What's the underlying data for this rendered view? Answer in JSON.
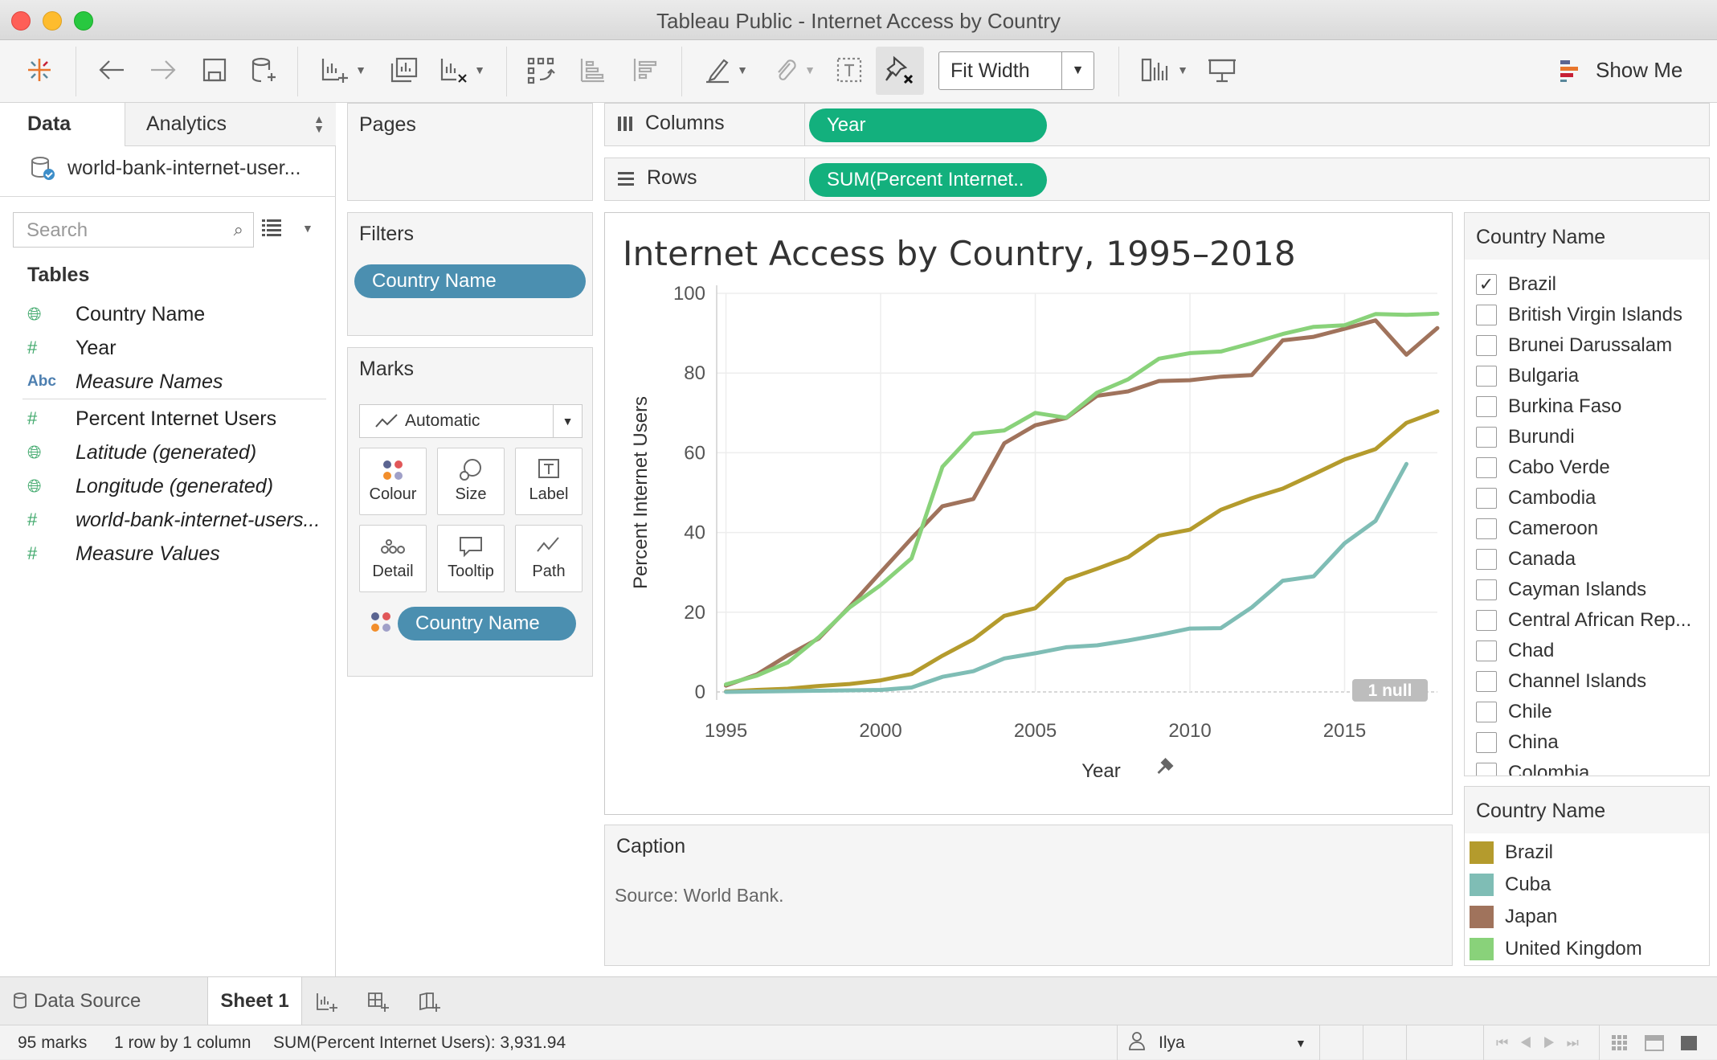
{
  "window": {
    "title": "Tableau Public - Internet Access by Country"
  },
  "toolbar": {
    "fit_label": "Fit Width",
    "show_me_label": "Show Me"
  },
  "data_pane": {
    "tab_data": "Data",
    "tab_analytics": "Analytics",
    "datasource": "world-bank-internet-user...",
    "search_placeholder": "Search",
    "tables_heading": "Tables",
    "fields": [
      {
        "name": "Country Name",
        "icon": "globe-icon",
        "italic": false
      },
      {
        "name": "Year",
        "icon": "hash-icon",
        "italic": false
      },
      {
        "name": "Measure Names",
        "icon": "abc-icon",
        "italic": true
      },
      {
        "name": "Percent Internet Users",
        "icon": "hash-icon",
        "italic": false
      },
      {
        "name": "Latitude (generated)",
        "icon": "globe-icon",
        "italic": true
      },
      {
        "name": "Longitude (generated)",
        "icon": "globe-icon",
        "italic": true
      },
      {
        "name": "world-bank-internet-users...",
        "icon": "hash-icon",
        "italic": true
      },
      {
        "name": "Measure Values",
        "icon": "hash-icon",
        "italic": true
      }
    ]
  },
  "shelves": {
    "pages_label": "Pages",
    "filters_label": "Filters",
    "filter_pill": "Country Name",
    "marks_label": "Marks",
    "mark_type": "Automatic",
    "mark_buttons": [
      "Colour",
      "Size",
      "Label",
      "Detail",
      "Tooltip",
      "Path"
    ],
    "color_pill": "Country Name",
    "columns_label": "Columns",
    "columns_pill": "Year",
    "rows_label": "Rows",
    "rows_pill": "SUM(Percent Internet.."
  },
  "view": {
    "caption_label": "Caption",
    "caption_text": "Source: World Bank.",
    "null_badge": "1 null"
  },
  "chart_data": {
    "type": "line",
    "title": "Internet Access by Country, 1995–2018",
    "xlabel": "Year",
    "ylabel": "Percent Internet Users",
    "xlim": [
      1994.7,
      2018
    ],
    "ylim": [
      0,
      100
    ],
    "x_ticks": [
      1995,
      2000,
      2005,
      2010,
      2015
    ],
    "y_ticks": [
      0,
      20,
      40,
      60,
      80,
      100
    ],
    "x": [
      1995,
      1996,
      1997,
      1998,
      1999,
      2000,
      2001,
      2002,
      2003,
      2004,
      2005,
      2006,
      2007,
      2008,
      2009,
      2010,
      2011,
      2012,
      2013,
      2014,
      2015,
      2016,
      2017,
      2018
    ],
    "series": [
      {
        "name": "Brazil",
        "color": "#b49b2d",
        "values": [
          0.1,
          0.5,
          0.8,
          1.5,
          2.0,
          2.9,
          4.5,
          9.1,
          13.2,
          19.1,
          21.0,
          28.2,
          30.9,
          33.8,
          39.2,
          40.7,
          45.7,
          48.6,
          51.0,
          54.6,
          58.3,
          60.9,
          67.5,
          70.4
        ]
      },
      {
        "name": "Cuba",
        "color": "#7fbdb5",
        "values": [
          0.0,
          0.1,
          0.2,
          0.3,
          0.4,
          0.5,
          1.1,
          3.8,
          5.2,
          8.4,
          9.7,
          11.2,
          11.7,
          12.9,
          14.3,
          15.9,
          16.0,
          21.2,
          27.9,
          29.0,
          37.3,
          42.9,
          57.2,
          null
        ]
      },
      {
        "name": "Japan",
        "color": "#a0735c",
        "values": [
          1.6,
          4.4,
          9.2,
          13.4,
          21.4,
          30.0,
          38.5,
          46.6,
          48.4,
          62.4,
          66.9,
          68.7,
          74.3,
          75.4,
          78.0,
          78.2,
          79.1,
          79.5,
          88.2,
          89.1,
          91.1,
          93.2,
          84.6,
          91.3
        ]
      },
      {
        "name": "United Kingdom",
        "color": "#89d27a",
        "values": [
          1.9,
          4.1,
          7.4,
          13.7,
          21.2,
          26.8,
          33.5,
          56.5,
          64.8,
          65.6,
          70.0,
          68.8,
          75.1,
          78.4,
          83.6,
          85.0,
          85.4,
          87.5,
          89.8,
          91.6,
          92.0,
          94.8,
          94.6,
          94.9
        ]
      }
    ],
    "null_marks": 1,
    "grid": true
  },
  "filter_card": {
    "title": "Country Name",
    "items": [
      {
        "label": "Brazil",
        "checked": true
      },
      {
        "label": "British Virgin Islands",
        "checked": false
      },
      {
        "label": "Brunei Darussalam",
        "checked": false
      },
      {
        "label": "Bulgaria",
        "checked": false
      },
      {
        "label": "Burkina Faso",
        "checked": false
      },
      {
        "label": "Burundi",
        "checked": false
      },
      {
        "label": "Cabo Verde",
        "checked": false
      },
      {
        "label": "Cambodia",
        "checked": false
      },
      {
        "label": "Cameroon",
        "checked": false
      },
      {
        "label": "Canada",
        "checked": false
      },
      {
        "label": "Cayman Islands",
        "checked": false
      },
      {
        "label": "Central African Rep...",
        "checked": false
      },
      {
        "label": "Chad",
        "checked": false
      },
      {
        "label": "Channel Islands",
        "checked": false
      },
      {
        "label": "Chile",
        "checked": false
      },
      {
        "label": "China",
        "checked": false
      },
      {
        "label": "Colombia",
        "checked": false
      }
    ]
  },
  "legend_card": {
    "title": "Country Name",
    "items": [
      {
        "label": "Brazil",
        "color": "#b49b2d"
      },
      {
        "label": "Cuba",
        "color": "#7fbdb5"
      },
      {
        "label": "Japan",
        "color": "#a0735c"
      },
      {
        "label": "United Kingdom",
        "color": "#89d27a"
      }
    ]
  },
  "tabs": {
    "data_source": "Data Source",
    "sheet": "Sheet 1"
  },
  "status": {
    "marks": "95 marks",
    "dims": "1 row by 1 column",
    "sum": "SUM(Percent Internet Users): 3,931.94",
    "user": "Ilya"
  }
}
